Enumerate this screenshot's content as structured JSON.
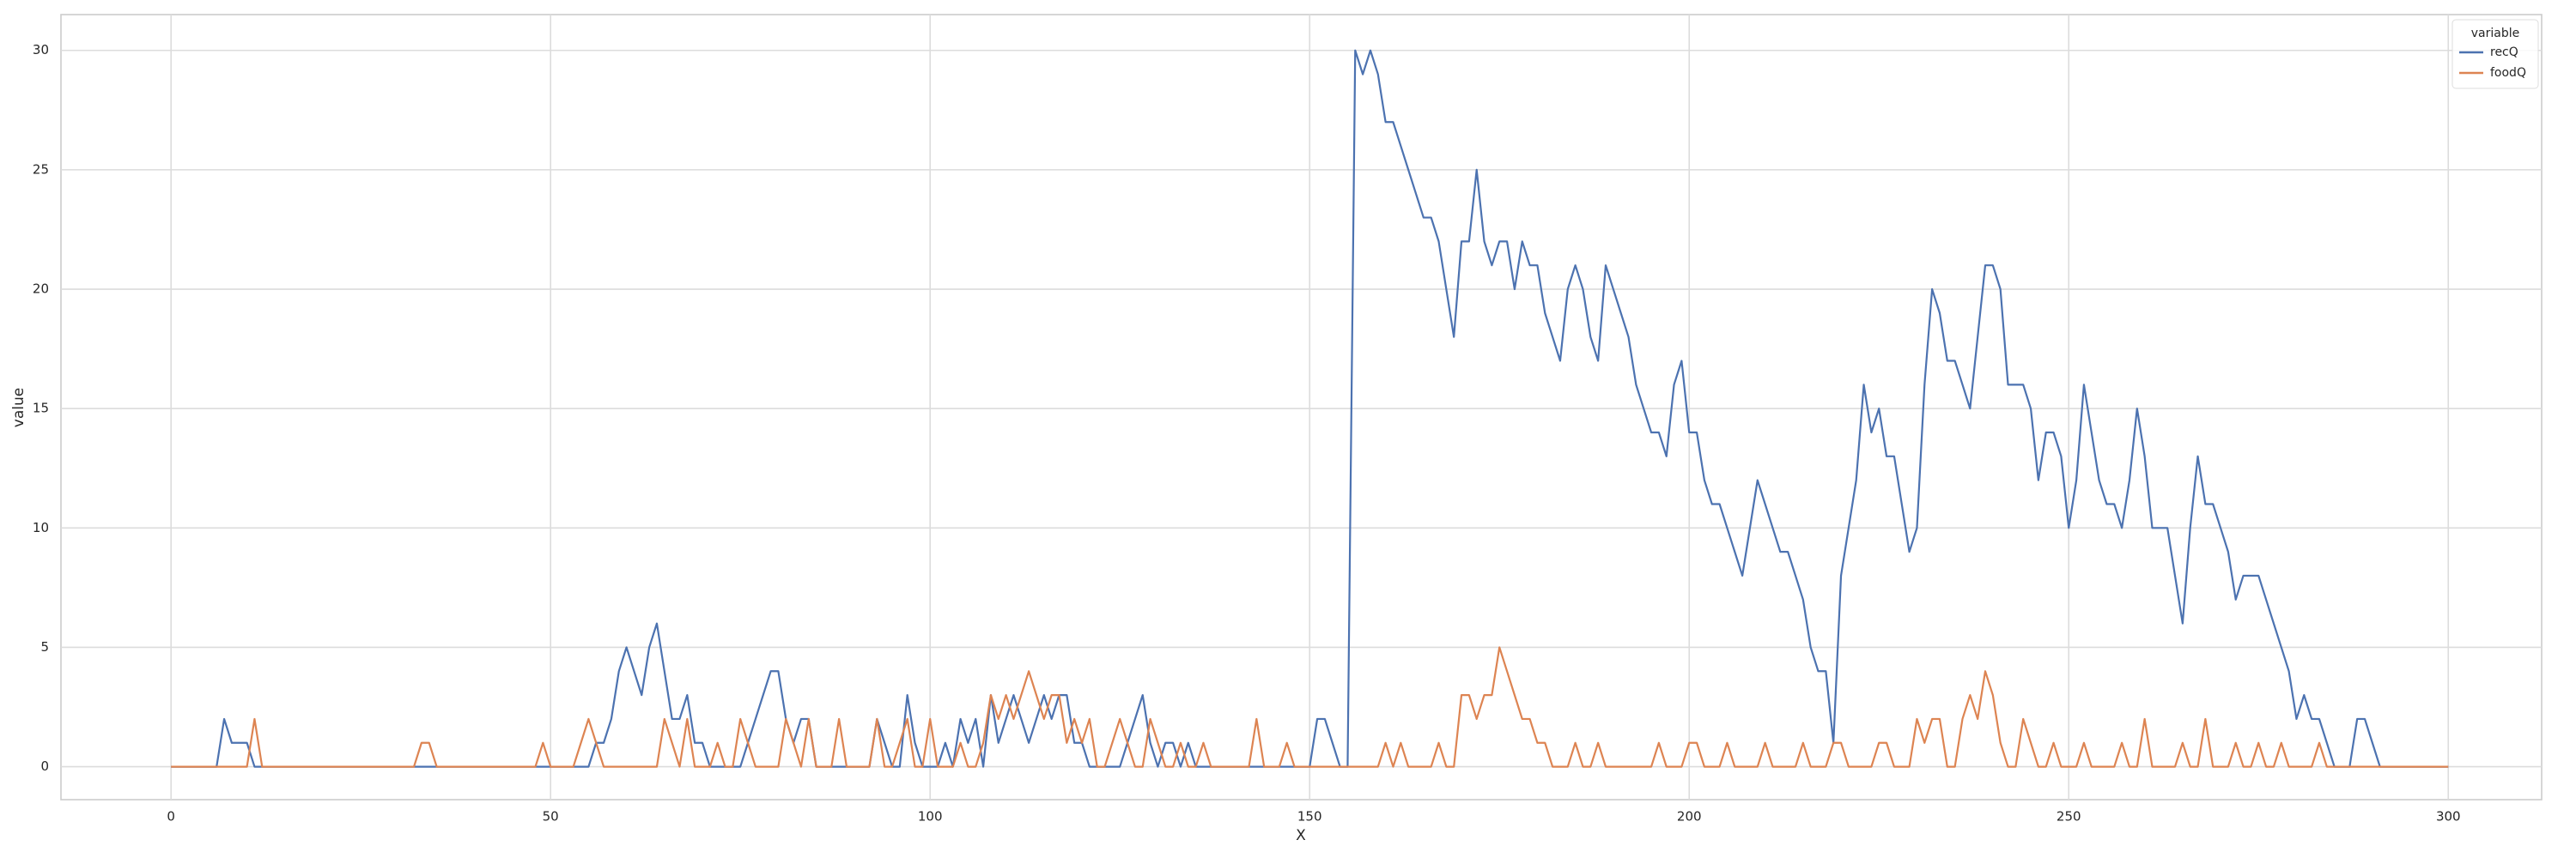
{
  "chart_data": {
    "type": "line",
    "xlabel": "X",
    "ylabel": "value",
    "x": [
      0,
      1,
      2,
      3,
      4,
      5,
      6,
      7,
      8,
      9,
      10,
      11,
      12,
      13,
      14,
      15,
      16,
      17,
      18,
      19,
      20,
      21,
      22,
      23,
      24,
      25,
      26,
      27,
      28,
      29,
      30,
      31,
      32,
      33,
      34,
      35,
      36,
      37,
      38,
      39,
      40,
      41,
      42,
      43,
      44,
      45,
      46,
      47,
      48,
      49,
      50,
      51,
      52,
      53,
      54,
      55,
      56,
      57,
      58,
      59,
      60,
      61,
      62,
      63,
      64,
      65,
      66,
      67,
      68,
      69,
      70,
      71,
      72,
      73,
      74,
      75,
      76,
      77,
      78,
      79,
      80,
      81,
      82,
      83,
      84,
      85,
      86,
      87,
      88,
      89,
      90,
      91,
      92,
      93,
      94,
      95,
      96,
      97,
      98,
      99,
      100,
      101,
      102,
      103,
      104,
      105,
      106,
      107,
      108,
      109,
      110,
      111,
      112,
      113,
      114,
      115,
      116,
      117,
      118,
      119,
      120,
      121,
      122,
      123,
      124,
      125,
      126,
      127,
      128,
      129,
      130,
      131,
      132,
      133,
      134,
      135,
      136,
      137,
      138,
      139,
      140,
      141,
      142,
      143,
      144,
      145,
      146,
      147,
      148,
      149,
      150,
      151,
      152,
      153,
      154,
      155,
      156,
      157,
      158,
      159,
      160,
      161,
      162,
      163,
      164,
      165,
      166,
      167,
      168,
      169,
      170,
      171,
      172,
      173,
      174,
      175,
      176,
      177,
      178,
      179,
      180,
      181,
      182,
      183,
      184,
      185,
      186,
      187,
      188,
      189,
      190,
      191,
      192,
      193,
      194,
      195,
      196,
      197,
      198,
      199,
      200,
      201,
      202,
      203,
      204,
      205,
      206,
      207,
      208,
      209,
      210,
      211,
      212,
      213,
      214,
      215,
      216,
      217,
      218,
      219,
      220,
      221,
      222,
      223,
      224,
      225,
      226,
      227,
      228,
      229,
      230,
      231,
      232,
      233,
      234,
      235,
      236,
      237,
      238,
      239,
      240,
      241,
      242,
      243,
      244,
      245,
      246,
      247,
      248,
      249,
      250,
      251,
      252,
      253,
      254,
      255,
      256,
      257,
      258,
      259,
      260,
      261,
      262,
      263,
      264,
      265,
      266,
      267,
      268,
      269,
      270,
      271,
      272,
      273,
      274,
      275,
      276,
      277,
      278,
      279,
      280,
      281,
      282,
      283,
      284,
      285,
      286,
      287,
      288,
      289,
      290,
      291,
      292,
      293,
      294,
      295,
      296,
      297,
      298,
      299,
      300
    ],
    "series": [
      {
        "name": "recQ",
        "color": "#4c72b0",
        "values": [
          0,
          0,
          0,
          0,
          0,
          0,
          0,
          2,
          1,
          1,
          1,
          0,
          0,
          0,
          0,
          0,
          0,
          0,
          0,
          0,
          0,
          0,
          0,
          0,
          0,
          0,
          0,
          0,
          0,
          0,
          0,
          0,
          0,
          0,
          0,
          0,
          0,
          0,
          0,
          0,
          0,
          0,
          0,
          0,
          0,
          0,
          0,
          0,
          0,
          0,
          0,
          0,
          0,
          0,
          0,
          0,
          1,
          1,
          2,
          4,
          5,
          4,
          3,
          5,
          6,
          4,
          2,
          2,
          3,
          1,
          1,
          0,
          0,
          0,
          0,
          0,
          1,
          2,
          3,
          4,
          4,
          2,
          1,
          2,
          2,
          0,
          0,
          0,
          0,
          0,
          0,
          0,
          0,
          2,
          1,
          0,
          0,
          3,
          1,
          0,
          0,
          0,
          1,
          0,
          2,
          1,
          2,
          0,
          3,
          1,
          2,
          3,
          2,
          1,
          2,
          3,
          2,
          3,
          3,
          1,
          1,
          0,
          0,
          0,
          0,
          0,
          1,
          2,
          3,
          1,
          0,
          1,
          1,
          0,
          1,
          0,
          0,
          0,
          0,
          0,
          0,
          0,
          0,
          0,
          0,
          0,
          0,
          0,
          0,
          0,
          0,
          2,
          2,
          1,
          0,
          0,
          30,
          29,
          30,
          29,
          27,
          27,
          26,
          25,
          24,
          23,
          23,
          22,
          20,
          18,
          22,
          22,
          25,
          22,
          21,
          22,
          22,
          20,
          22,
          21,
          21,
          19,
          18,
          17,
          20,
          21,
          20,
          18,
          17,
          21,
          20,
          19,
          18,
          16,
          15,
          14,
          14,
          13,
          16,
          17,
          14,
          14,
          12,
          11,
          11,
          10,
          9,
          8,
          10,
          12,
          11,
          10,
          9,
          9,
          8,
          7,
          5,
          4,
          4,
          1,
          8,
          10,
          12,
          16,
          14,
          15,
          13,
          13,
          11,
          9,
          10,
          16,
          20,
          19,
          17,
          17,
          16,
          15,
          18,
          21,
          21,
          20,
          16,
          16,
          16,
          15,
          12,
          14,
          14,
          13,
          10,
          12,
          16,
          14,
          12,
          11,
          11,
          10,
          12,
          15,
          13,
          10,
          10,
          10,
          8,
          6,
          10,
          13,
          11,
          11,
          10,
          9,
          7,
          8,
          8,
          8,
          7,
          6,
          5,
          4,
          2,
          3,
          2,
          2,
          1,
          0,
          0,
          0,
          2,
          2,
          1,
          0,
          0,
          0,
          0,
          0,
          0,
          0,
          0,
          0,
          0
        ]
      },
      {
        "name": "foodQ",
        "color": "#dd8452",
        "values": [
          0,
          0,
          0,
          0,
          0,
          0,
          0,
          0,
          0,
          0,
          0,
          2,
          0,
          0,
          0,
          0,
          0,
          0,
          0,
          0,
          0,
          0,
          0,
          0,
          0,
          0,
          0,
          0,
          0,
          0,
          0,
          0,
          0,
          1,
          1,
          0,
          0,
          0,
          0,
          0,
          0,
          0,
          0,
          0,
          0,
          0,
          0,
          0,
          0,
          1,
          0,
          0,
          0,
          0,
          1,
          2,
          1,
          0,
          0,
          0,
          0,
          0,
          0,
          0,
          0,
          2,
          1,
          0,
          2,
          0,
          0,
          0,
          1,
          0,
          0,
          2,
          1,
          0,
          0,
          0,
          0,
          2,
          1,
          0,
          2,
          0,
          0,
          0,
          2,
          0,
          0,
          0,
          0,
          2,
          0,
          0,
          1,
          2,
          0,
          0,
          2,
          0,
          0,
          0,
          1,
          0,
          0,
          1,
          3,
          2,
          3,
          2,
          3,
          4,
          3,
          2,
          3,
          3,
          1,
          2,
          1,
          2,
          0,
          0,
          1,
          2,
          1,
          0,
          0,
          2,
          1,
          0,
          0,
          1,
          0,
          0,
          1,
          0,
          0,
          0,
          0,
          0,
          0,
          2,
          0,
          0,
          0,
          1,
          0,
          0,
          0,
          0,
          0,
          0,
          0,
          0,
          0,
          0,
          0,
          0,
          1,
          0,
          1,
          0,
          0,
          0,
          0,
          1,
          0,
          0,
          3,
          3,
          2,
          3,
          3,
          5,
          4,
          3,
          2,
          2,
          1,
          1,
          0,
          0,
          0,
          1,
          0,
          0,
          1,
          0,
          0,
          0,
          0,
          0,
          0,
          0,
          1,
          0,
          0,
          0,
          1,
          1,
          0,
          0,
          0,
          1,
          0,
          0,
          0,
          0,
          1,
          0,
          0,
          0,
          0,
          1,
          0,
          0,
          0,
          1,
          1,
          0,
          0,
          0,
          0,
          1,
          1,
          0,
          0,
          0,
          2,
          1,
          2,
          2,
          0,
          0,
          2,
          3,
          2,
          4,
          3,
          1,
          0,
          0,
          2,
          1,
          0,
          0,
          1,
          0,
          0,
          0,
          1,
          0,
          0,
          0,
          0,
          1,
          0,
          0,
          2,
          0,
          0,
          0,
          0,
          1,
          0,
          0,
          2,
          0,
          0,
          0,
          1,
          0,
          0,
          1,
          0,
          0,
          1,
          0,
          0,
          0,
          0,
          1,
          0,
          0,
          0,
          0,
          0,
          0,
          0,
          0,
          0,
          0,
          0,
          0,
          0,
          0,
          0,
          0,
          0
        ]
      }
    ],
    "legend_title": "variable",
    "legend": "upper right",
    "xlim": [
      -14.5,
      312.3
    ],
    "xticks": [
      0,
      50,
      100,
      150,
      200,
      250,
      300
    ],
    "ylim": [
      -1.38,
      31.5
    ],
    "yticks": [
      0,
      5,
      10,
      15,
      20,
      25,
      30
    ],
    "grid": true
  }
}
